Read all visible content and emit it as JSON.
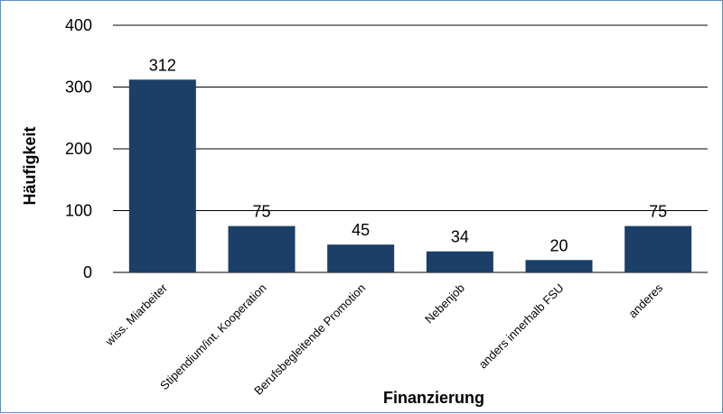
{
  "chart_data": {
    "type": "bar",
    "categories": [
      "wiss. Miarbeiter",
      "Stipendium/int. Kooperation",
      "Berufsbegleitende Promotion",
      "Nebenjob",
      "anders innerhalb FSU",
      "anderes"
    ],
    "values": [
      312,
      75,
      45,
      34,
      20,
      75
    ],
    "data_labels": [
      "312",
      "75",
      "45",
      "34",
      "20",
      "75"
    ],
    "title": "",
    "xlabel": "Finanzierung",
    "ylabel": "Häufigkeit",
    "ylim": [
      0,
      400
    ],
    "yticks": [
      0,
      100,
      200,
      300,
      400
    ],
    "ytick_labels": [
      "0",
      "100",
      "200",
      "300",
      "400"
    ],
    "grid": true,
    "bar_color": "#1b3f66",
    "grid_color": "#000000",
    "border_color": "#5b8ec7"
  }
}
